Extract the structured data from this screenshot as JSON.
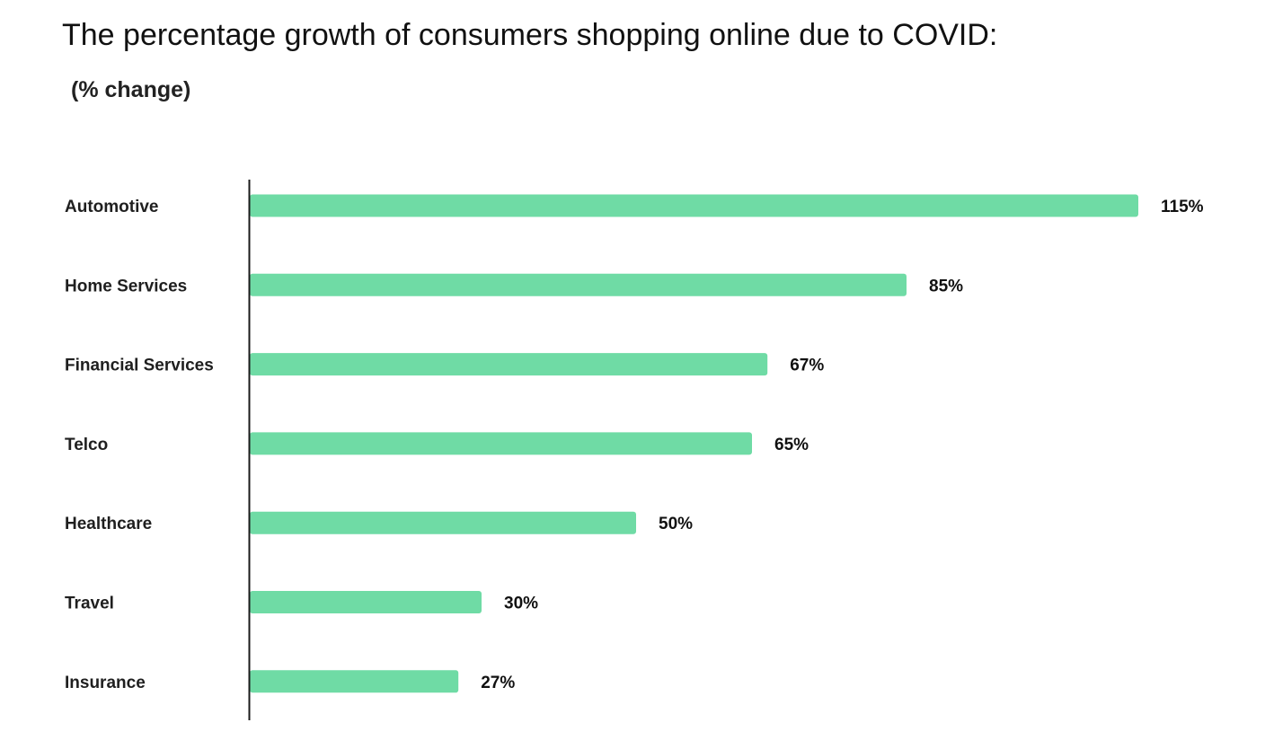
{
  "chart_data": {
    "type": "bar",
    "orientation": "horizontal",
    "title": "The percentage growth of consumers shopping online due to COVID:",
    "subtitle": "(% change)",
    "categories": [
      "Automotive",
      "Home Services",
      "Financial Services",
      "Telco",
      "Healthcare",
      "Travel",
      "Insurance"
    ],
    "values": [
      115,
      85,
      67,
      65,
      50,
      30,
      27
    ],
    "value_labels": [
      "115%",
      "85%",
      "67%",
      "65%",
      "50%",
      "30%",
      "27%"
    ],
    "xlim": [
      0,
      115
    ],
    "grid": false,
    "legend": "none",
    "bar_color": "#6fdba5",
    "axis_color": "#1a1a1a"
  }
}
